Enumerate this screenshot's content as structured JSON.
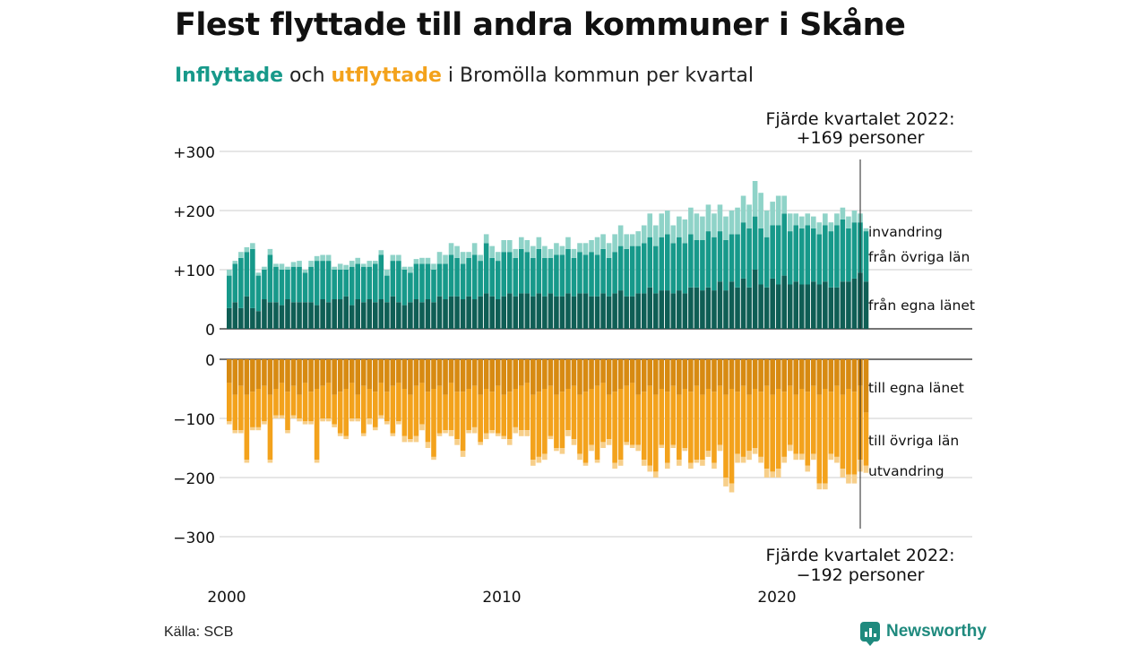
{
  "title": "Flest flyttade till andra kommuner i Skåne",
  "subtitle": {
    "in_word": "Inflyttade",
    "and_word": "och",
    "out_word": "utflyttade",
    "rest": "i Bromölla kommun per kvartal"
  },
  "source": "Källa: SCB",
  "brand": "Newsworthy",
  "colors": {
    "in_own": "#0f5e55",
    "in_other": "#17998a",
    "in_immig": "#8fd3c8",
    "out_own": "#d78a12",
    "out_other": "#f3a21c",
    "out_emig": "#f7cf8a",
    "brand": "#1f8a7e"
  },
  "chart_data": {
    "type": "bar",
    "stacked": true,
    "x_start": "2000 Q1",
    "x_ticks": [
      "2000",
      "2010",
      "2020"
    ],
    "top_panel": {
      "y_ticks": [
        "+300",
        "+200",
        "+100",
        "0"
      ],
      "ylim": [
        0,
        300
      ],
      "series": [
        {
          "name": "från egna länet",
          "values": [
            35,
            45,
            35,
            55,
            35,
            30,
            50,
            45,
            45,
            40,
            50,
            45,
            45,
            45,
            45,
            40,
            50,
            45,
            50,
            50,
            55,
            40,
            50,
            45,
            50,
            45,
            50,
            45,
            55,
            45,
            40,
            45,
            50,
            45,
            50,
            45,
            55,
            50,
            55,
            55,
            50,
            55,
            50,
            55,
            60,
            55,
            50,
            55,
            60,
            55,
            60,
            60,
            55,
            60,
            55,
            60,
            55,
            55,
            60,
            55,
            60,
            60,
            55,
            55,
            60,
            55,
            60,
            65,
            55,
            55,
            60,
            60,
            70,
            60,
            65,
            65,
            60,
            65,
            60,
            70,
            70,
            65,
            70,
            65,
            80,
            65,
            80,
            70,
            85,
            70,
            100,
            75,
            70,
            85,
            75,
            90,
            75,
            80,
            75,
            75,
            80,
            75,
            80,
            70,
            70,
            80,
            80,
            85,
            95,
            80
          ]
        },
        {
          "name": "från övriga län",
          "values": [
            55,
            65,
            85,
            75,
            100,
            60,
            50,
            80,
            60,
            60,
            50,
            60,
            60,
            50,
            60,
            75,
            65,
            70,
            50,
            50,
            45,
            65,
            60,
            60,
            55,
            65,
            75,
            45,
            60,
            70,
            60,
            50,
            60,
            65,
            60,
            55,
            55,
            60,
            70,
            65,
            60,
            65,
            75,
            60,
            85,
            65,
            65,
            75,
            70,
            65,
            75,
            70,
            65,
            75,
            65,
            60,
            70,
            70,
            75,
            65,
            70,
            65,
            75,
            70,
            75,
            65,
            70,
            75,
            80,
            85,
            80,
            85,
            85,
            80,
            90,
            95,
            85,
            90,
            85,
            90,
            80,
            85,
            95,
            90,
            85,
            85,
            80,
            90,
            95,
            100,
            90,
            95,
            85,
            90,
            100,
            105,
            90,
            95,
            95,
            100,
            90,
            85,
            95,
            95,
            105,
            105,
            90,
            95,
            85,
            85
          ]
        },
        {
          "name": "invandring",
          "values": [
            10,
            5,
            10,
            8,
            10,
            5,
            5,
            10,
            5,
            10,
            5,
            8,
            10,
            5,
            10,
            8,
            10,
            10,
            5,
            10,
            8,
            10,
            10,
            5,
            10,
            5,
            8,
            10,
            10,
            10,
            5,
            10,
            8,
            10,
            10,
            10,
            20,
            15,
            20,
            20,
            20,
            10,
            20,
            10,
            15,
            20,
            15,
            20,
            20,
            15,
            20,
            20,
            20,
            20,
            20,
            15,
            20,
            15,
            20,
            15,
            15,
            20,
            20,
            30,
            25,
            25,
            30,
            35,
            25,
            20,
            25,
            30,
            40,
            35,
            40,
            40,
            30,
            35,
            40,
            45,
            45,
            40,
            45,
            40,
            45,
            40,
            40,
            45,
            45,
            40,
            60,
            60,
            45,
            40,
            50,
            30,
            30,
            20,
            20,
            20,
            20,
            20,
            20,
            15,
            20,
            20,
            20,
            20,
            15,
            5
          ]
        }
      ]
    },
    "bottom_panel": {
      "y_ticks": [
        "0",
        "−100",
        "−200",
        "−300"
      ],
      "ylim": [
        -300,
        0
      ],
      "series": [
        {
          "name": "till egna länet",
          "values": [
            -40,
            -60,
            -45,
            -60,
            -55,
            -50,
            -45,
            -60,
            -50,
            -40,
            -55,
            -45,
            -60,
            -40,
            -55,
            -50,
            -45,
            -40,
            -60,
            -55,
            -50,
            -40,
            -60,
            -45,
            -50,
            -55,
            -40,
            -55,
            -45,
            -40,
            -50,
            -60,
            -45,
            -40,
            -55,
            -50,
            -45,
            -60,
            -40,
            -55,
            -55,
            -50,
            -45,
            -60,
            -50,
            -55,
            -45,
            -60,
            -55,
            -50,
            -45,
            -40,
            -60,
            -55,
            -50,
            -45,
            -60,
            -55,
            -50,
            -45,
            -60,
            -55,
            -50,
            -45,
            -40,
            -60,
            -55,
            -50,
            -45,
            -40,
            -60,
            -55,
            -45,
            -60,
            -50,
            -55,
            -45,
            -60,
            -50,
            -55,
            -45,
            -60,
            -50,
            -55,
            -45,
            -60,
            -50,
            -55,
            -45,
            -60,
            -50,
            -55,
            -45,
            -60,
            -50,
            -55,
            -45,
            -60,
            -50,
            -55,
            -45,
            -60,
            -50,
            -55,
            -45,
            -60,
            -50,
            -55,
            -45,
            -90
          ]
        },
        {
          "name": "till övriga län",
          "values": [
            -65,
            -60,
            -75,
            -110,
            -60,
            -65,
            -60,
            -110,
            -45,
            -55,
            -65,
            -50,
            -40,
            -65,
            -50,
            -120,
            -55,
            -60,
            -50,
            -70,
            -80,
            -60,
            -40,
            -80,
            -50,
            -60,
            -55,
            -50,
            -80,
            -65,
            -80,
            -75,
            -85,
            -70,
            -85,
            -115,
            -80,
            -60,
            -80,
            -80,
            -100,
            -70,
            -70,
            -80,
            -75,
            -65,
            -80,
            -70,
            -80,
            -65,
            -75,
            -80,
            -110,
            -110,
            -110,
            -85,
            -90,
            -95,
            -70,
            -90,
            -100,
            -120,
            -95,
            -125,
            -100,
            -75,
            -120,
            -120,
            -95,
            -105,
            -85,
            -115,
            -135,
            -130,
            -95,
            -120,
            -100,
            -110,
            -100,
            -120,
            -125,
            -110,
            -105,
            -120,
            -100,
            -140,
            -160,
            -105,
            -120,
            -95,
            -100,
            -110,
            -140,
            -130,
            -135,
            -110,
            -100,
            -100,
            -110,
            -125,
            -115,
            -150,
            -160,
            -105,
            -120,
            -125,
            -145,
            -140,
            -125,
            -90
          ]
        },
        {
          "name": "utvandring",
          "values": [
            -5,
            -5,
            -5,
            -5,
            -5,
            -5,
            -5,
            -5,
            -5,
            -5,
            -5,
            -5,
            -5,
            -5,
            -5,
            -5,
            -5,
            -5,
            -5,
            -5,
            -5,
            -5,
            -5,
            -5,
            -10,
            -5,
            -5,
            -5,
            -5,
            -5,
            -10,
            -5,
            -10,
            -10,
            -10,
            -5,
            -5,
            -5,
            -10,
            -10,
            -10,
            -5,
            -10,
            -5,
            -10,
            -5,
            -5,
            -5,
            -10,
            -10,
            -10,
            -10,
            -10,
            -10,
            -10,
            -5,
            -5,
            -10,
            -10,
            -10,
            -10,
            -5,
            -10,
            -5,
            -10,
            -10,
            -10,
            -10,
            -5,
            -5,
            -10,
            -10,
            -10,
            -10,
            -5,
            -10,
            -5,
            -10,
            -5,
            -10,
            -5,
            -10,
            -10,
            -10,
            -10,
            -15,
            -15,
            -15,
            -10,
            -15,
            -10,
            -10,
            -15,
            -10,
            -15,
            -10,
            -10,
            -10,
            -10,
            -10,
            -10,
            -10,
            -10,
            -10,
            -10,
            -15,
            -15,
            -15,
            -20,
            -12
          ]
        }
      ]
    },
    "annotations": {
      "top_label": "Fjärde kvartalet 2022:",
      "top_value": "+169 personer",
      "bottom_label": "Fjärde kvartalet 2022:",
      "bottom_value": "−192 personer"
    }
  }
}
